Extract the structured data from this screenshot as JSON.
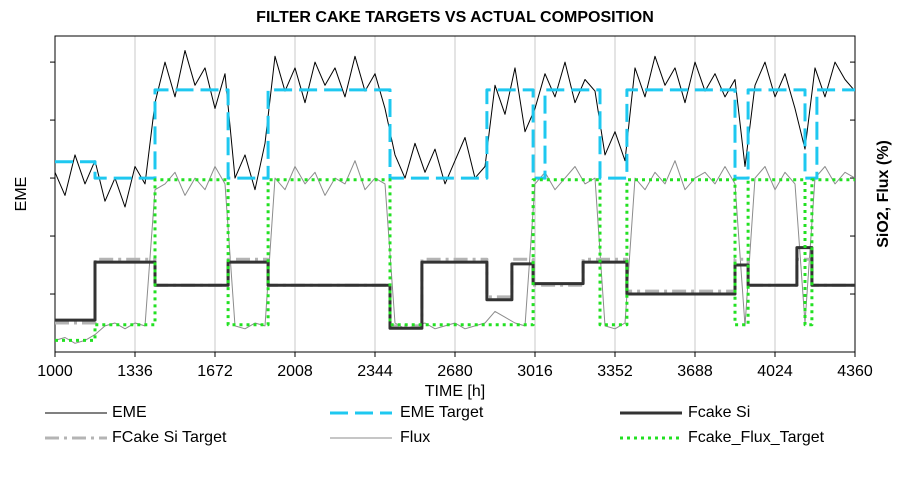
{
  "chart_data": {
    "type": "line",
    "title": "FILTER CAKE TARGETS VS ACTUAL COMPOSITION",
    "x_label": "TIME [h]",
    "y_label": "EME",
    "y2_label": "SiO2, Flux (%)",
    "xlim": [
      1000,
      4360
    ],
    "xticks": [
      1000,
      1336,
      1672,
      2008,
      2344,
      2680,
      3016,
      3352,
      3688,
      4024,
      4360
    ],
    "ylim": [
      0,
      5.45
    ],
    "yticks": [
      1,
      2,
      3,
      4,
      5
    ],
    "grid": true,
    "legend": "bottom",
    "series": [
      {
        "name": "EME",
        "color": "#000000",
        "width": 1,
        "dash": "none",
        "x": [
          1000,
          1042,
          1084,
          1126,
          1168,
          1210,
          1252,
          1294,
          1336,
          1378,
          1420,
          1462,
          1504,
          1546,
          1588,
          1630,
          1672,
          1714,
          1756,
          1798,
          1840,
          1882,
          1924,
          1966,
          2008,
          2050,
          2092,
          2134,
          2176,
          2218,
          2260,
          2302,
          2344,
          2386,
          2428,
          2470,
          2512,
          2554,
          2596,
          2638,
          2680,
          2722,
          2764,
          2806,
          2848,
          2890,
          2932,
          2974,
          3016,
          3058,
          3100,
          3142,
          3184,
          3226,
          3268,
          3310,
          3352,
          3394,
          3436,
          3478,
          3520,
          3562,
          3604,
          3646,
          3688,
          3730,
          3772,
          3814,
          3856,
          3898,
          3940,
          3982,
          4024,
          4066,
          4108,
          4150,
          4192,
          4234,
          4276,
          4318,
          4360
        ],
        "values": [
          3.1,
          2.7,
          3.4,
          2.9,
          3.3,
          2.6,
          3.0,
          2.5,
          3.2,
          2.9,
          4.3,
          5.0,
          4.4,
          5.2,
          4.6,
          4.9,
          4.2,
          4.8,
          3.0,
          3.4,
          2.8,
          3.6,
          5.1,
          4.5,
          4.9,
          4.3,
          5.0,
          4.6,
          4.9,
          4.4,
          5.1,
          4.5,
          4.8,
          4.2,
          3.4,
          3.0,
          3.6,
          3.1,
          3.5,
          2.9,
          3.3,
          3.7,
          3.0,
          3.2,
          4.6,
          4.1,
          4.9,
          3.8,
          4.2,
          4.8,
          4.4,
          5.0,
          4.3,
          4.7,
          4.5,
          3.4,
          3.8,
          3.3,
          4.9,
          4.4,
          5.1,
          4.6,
          4.9,
          4.3,
          5.0,
          4.5,
          4.8,
          4.4,
          4.7,
          3.2,
          4.6,
          5.0,
          4.4,
          4.8,
          4.2,
          3.5,
          4.9,
          4.4,
          5.0,
          4.7,
          4.5
        ]
      },
      {
        "name": "EME Target",
        "color": "#1ec8f0",
        "width": 3,
        "dash": "18 7",
        "x": [
          1000,
          1168,
          1168,
          1420,
          1420,
          1727,
          1727,
          1895,
          1895,
          2407,
          2407,
          2814,
          2814,
          3008,
          3008,
          3058,
          3058,
          3289,
          3289,
          3402,
          3402,
          3856,
          3856,
          3911,
          3911,
          4150,
          4150,
          4200,
          4200,
          4360
        ],
        "values": [
          3.28,
          3.28,
          3.0,
          3.0,
          4.52,
          4.52,
          3.0,
          3.0,
          4.52,
          4.52,
          3.0,
          3.0,
          4.52,
          4.52,
          3.0,
          3.0,
          4.52,
          4.52,
          3.0,
          3.0,
          4.52,
          4.52,
          3.0,
          3.0,
          4.52,
          4.52,
          3.0,
          3.0,
          4.52,
          4.52
        ]
      },
      {
        "name": "Fcake Si",
        "color": "#333333",
        "width": 3,
        "dash": "none",
        "x": [
          1000,
          1168,
          1168,
          1420,
          1420,
          1727,
          1727,
          1895,
          1895,
          2407,
          2407,
          2541,
          2541,
          2814,
          2814,
          2919,
          2919,
          3008,
          3008,
          3218,
          3218,
          3402,
          3402,
          3856,
          3856,
          3911,
          3911,
          4116,
          4116,
          4179,
          4179,
          4360
        ],
        "values": [
          0.55,
          0.55,
          1.55,
          1.55,
          1.15,
          1.15,
          1.55,
          1.55,
          1.15,
          1.15,
          0.41,
          0.41,
          1.55,
          1.55,
          0.9,
          0.9,
          1.52,
          1.52,
          1.18,
          1.18,
          1.55,
          1.55,
          1.0,
          1.0,
          1.5,
          1.5,
          1.15,
          1.15,
          1.8,
          1.8,
          1.15,
          1.15
        ]
      },
      {
        "name": "FCake Si Target",
        "color": "#b4b4b4",
        "width": 3,
        "dash": "14 5 3 5",
        "x": [
          1000,
          1168,
          1168,
          1420,
          1420,
          1727,
          1727,
          1895,
          1895,
          2407,
          2407,
          2541,
          2541,
          2814,
          2814,
          2919,
          2919,
          3008,
          3008,
          3218,
          3218,
          3402,
          3402,
          3856,
          3856,
          3911,
          3911,
          4116,
          4116,
          4179,
          4179,
          4360
        ],
        "values": [
          0.5,
          0.5,
          1.6,
          1.6,
          1.15,
          1.15,
          1.6,
          1.6,
          1.15,
          1.15,
          0.45,
          0.45,
          1.6,
          1.6,
          0.95,
          0.95,
          1.6,
          1.6,
          1.15,
          1.15,
          1.6,
          1.6,
          1.05,
          1.05,
          1.6,
          1.6,
          1.15,
          1.15,
          1.6,
          1.6,
          1.15,
          1.15
        ]
      },
      {
        "name": "Flux",
        "color": "#8c8c8c",
        "width": 1,
        "dash": "none",
        "x": [
          1000,
          1042,
          1084,
          1126,
          1168,
          1210,
          1252,
          1294,
          1336,
          1378,
          1420,
          1462,
          1504,
          1546,
          1588,
          1630,
          1672,
          1714,
          1756,
          1798,
          1840,
          1882,
          1924,
          1966,
          2008,
          2050,
          2092,
          2134,
          2176,
          2218,
          2260,
          2302,
          2344,
          2386,
          2428,
          2470,
          2512,
          2554,
          2596,
          2638,
          2680,
          2722,
          2764,
          2806,
          2848,
          2890,
          2932,
          2974,
          3016,
          3058,
          3100,
          3142,
          3184,
          3226,
          3268,
          3310,
          3352,
          3394,
          3436,
          3478,
          3520,
          3562,
          3604,
          3646,
          3688,
          3730,
          3772,
          3814,
          3856,
          3898,
          3940,
          3982,
          4024,
          4066,
          4108,
          4150,
          4192,
          4234,
          4276,
          4318,
          4360
        ],
        "values": [
          0.2,
          0.25,
          0.15,
          0.2,
          0.3,
          0.45,
          0.5,
          0.4,
          0.5,
          0.45,
          2.8,
          2.9,
          3.1,
          2.7,
          3.0,
          2.8,
          3.2,
          2.9,
          0.45,
          0.4,
          0.5,
          0.45,
          3.0,
          2.8,
          3.2,
          2.9,
          3.1,
          2.7,
          3.0,
          2.9,
          3.3,
          2.8,
          3.0,
          2.9,
          0.5,
          0.4,
          0.45,
          0.5,
          0.4,
          0.45,
          0.5,
          0.4,
          0.45,
          0.5,
          0.7,
          0.6,
          0.5,
          0.45,
          2.9,
          3.1,
          2.8,
          3.0,
          3.2,
          2.9,
          3.0,
          0.45,
          0.4,
          0.5,
          3.0,
          2.8,
          3.1,
          2.9,
          3.3,
          2.8,
          3.0,
          3.1,
          2.9,
          3.2,
          2.9,
          0.45,
          3.0,
          3.2,
          2.8,
          3.1,
          2.9,
          0.5,
          3.0,
          3.2,
          2.9,
          3.1,
          3.0
        ]
      },
      {
        "name": "Fcake_Flux_Target",
        "color": "#22e022",
        "width": 3,
        "dash": "3 4",
        "x": [
          1000,
          1168,
          1168,
          1420,
          1420,
          1727,
          1727,
          1895,
          1895,
          2407,
          2407,
          3008,
          3008,
          3289,
          3289,
          3402,
          3402,
          3856,
          3856,
          3911,
          3911,
          4150,
          4150,
          4179,
          4179,
          4360
        ],
        "values": [
          0.2,
          0.2,
          0.47,
          0.47,
          2.97,
          2.97,
          0.47,
          0.47,
          2.97,
          2.97,
          0.47,
          0.47,
          2.97,
          2.97,
          0.47,
          0.47,
          2.97,
          2.97,
          0.47,
          0.47,
          2.97,
          2.97,
          0.47,
          0.47,
          2.97,
          2.97
        ]
      }
    ]
  }
}
